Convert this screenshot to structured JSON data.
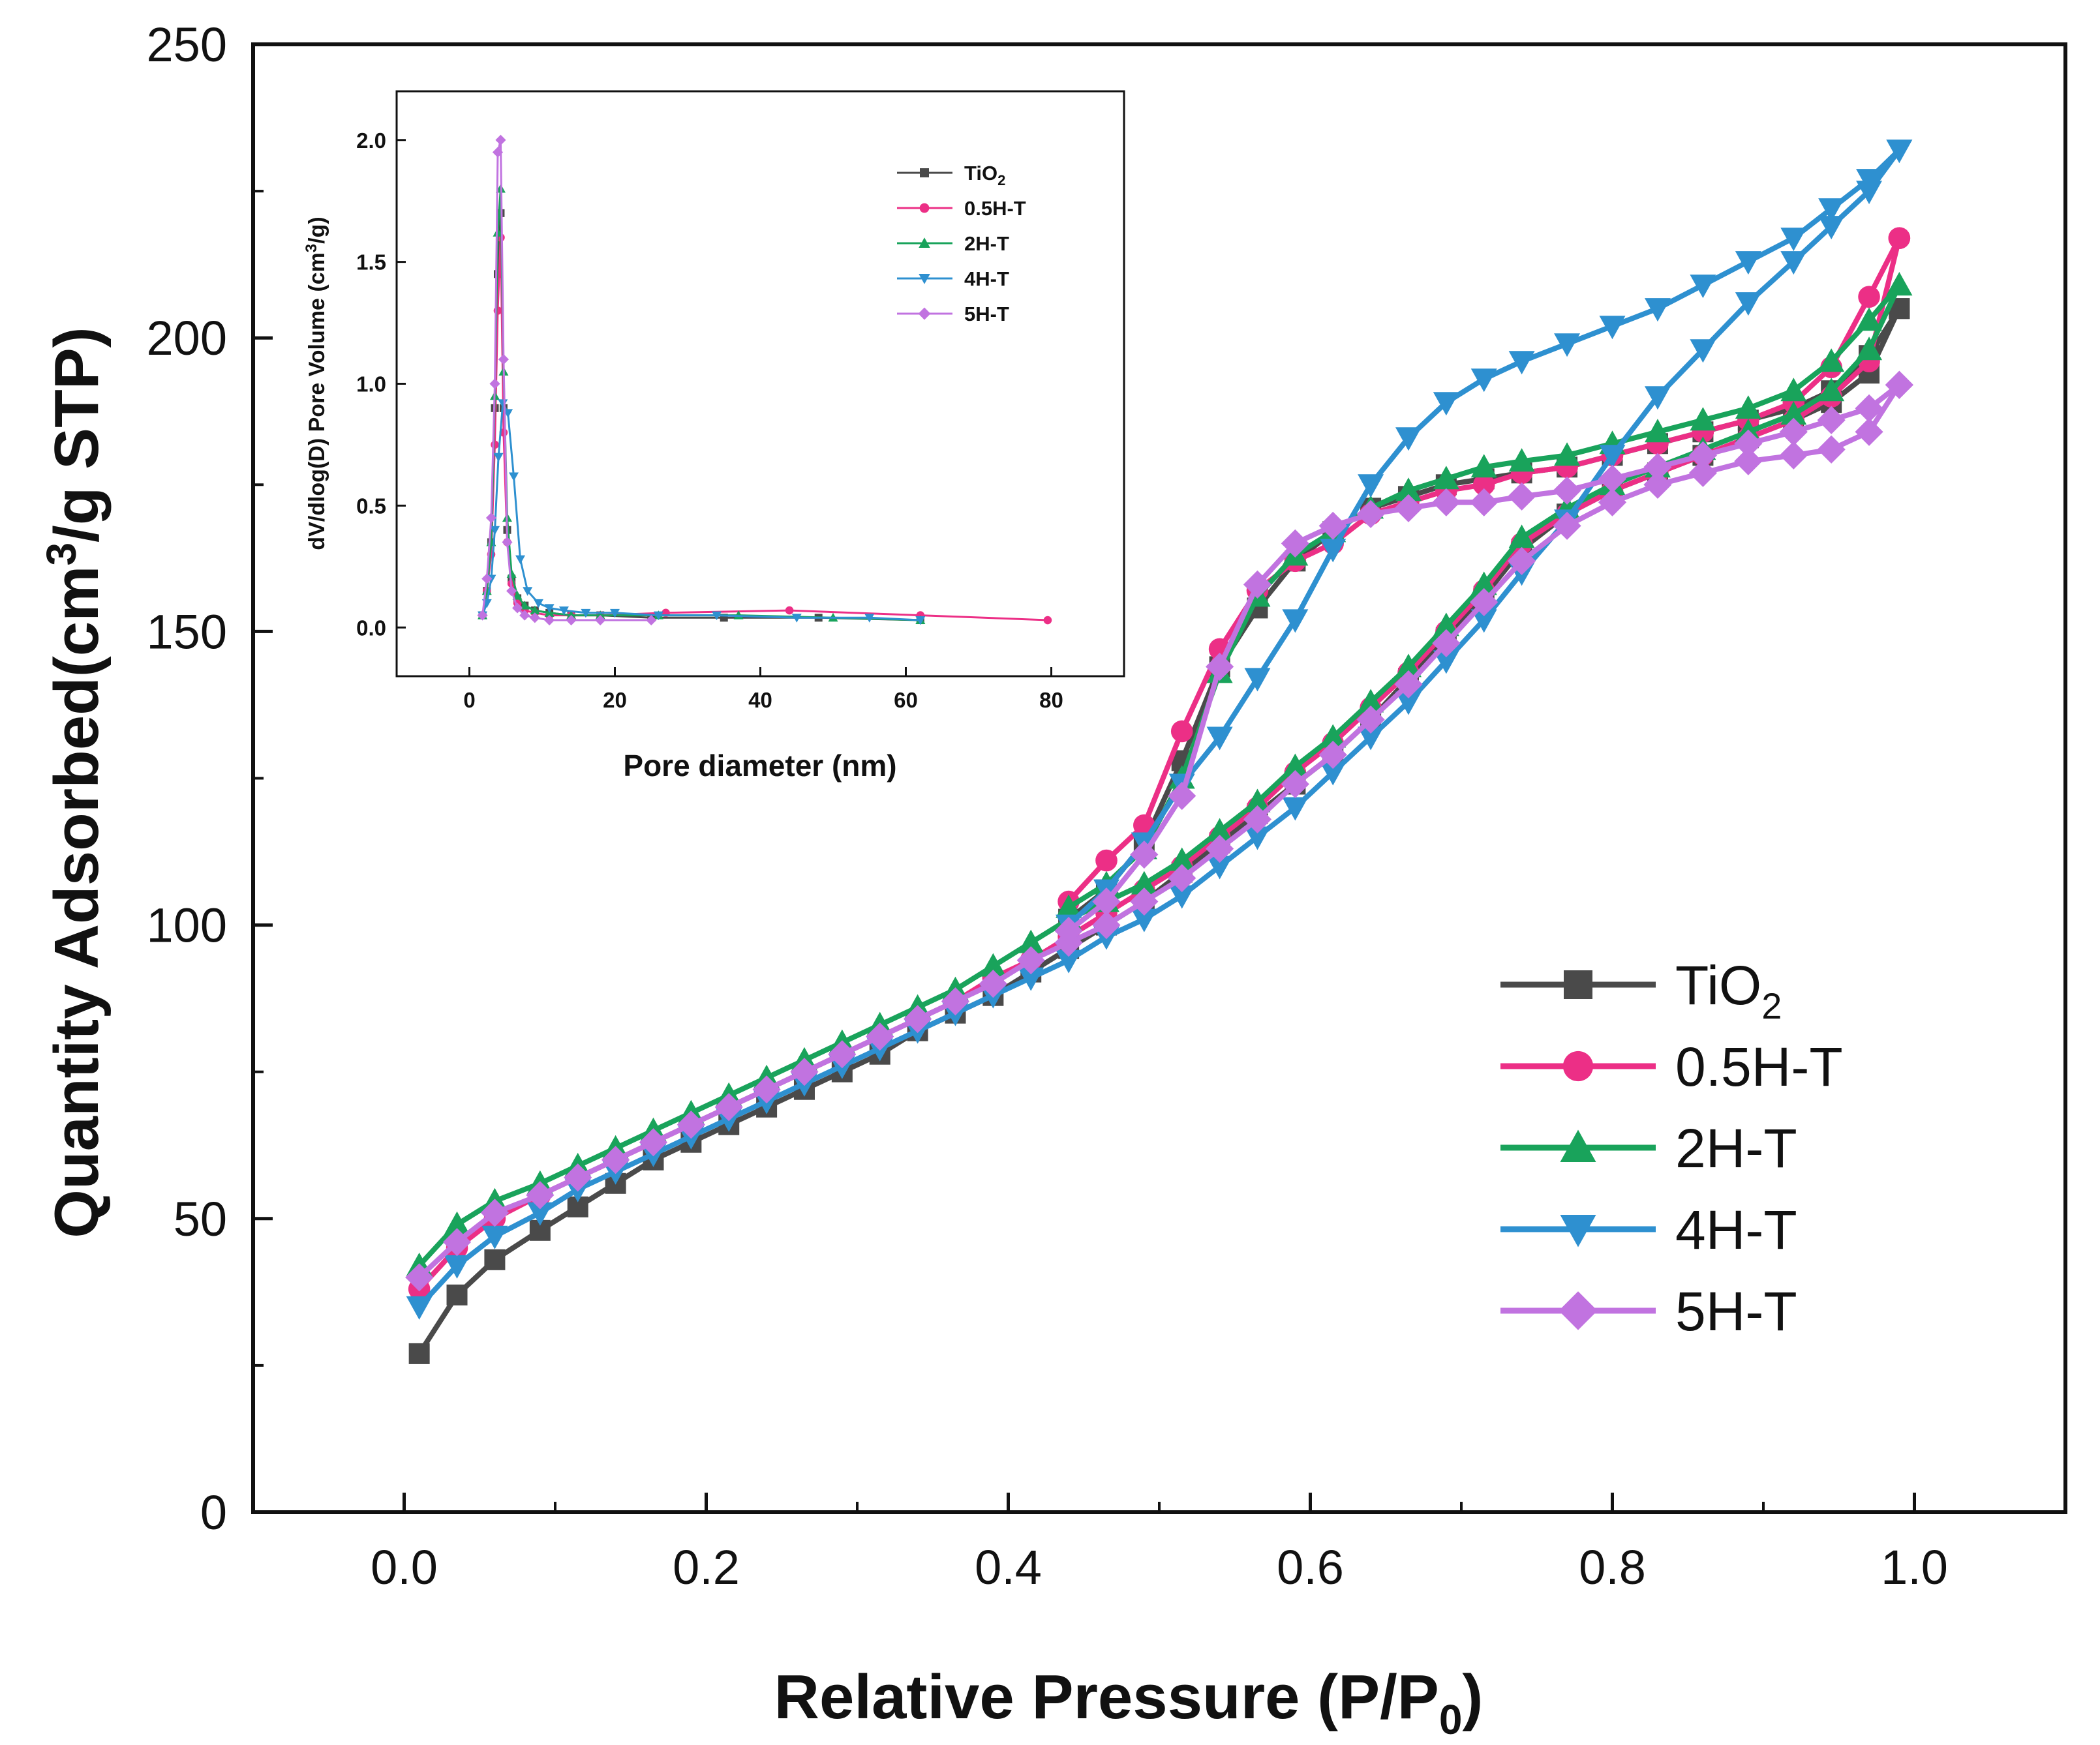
{
  "chart_data": [
    {
      "type": "line",
      "title": "",
      "xlabel": "Relative Pressure (P/P",
      "xlabel_sub": "0",
      "xlabel_tail": ")",
      "ylabel": "Quantity Adsorbed(cm",
      "ylabel_sup": "3",
      "ylabel_tail": "/g STP)",
      "xlim": [
        -0.1,
        1.1
      ],
      "ylim": [
        0,
        250
      ],
      "xticks": [
        0.0,
        0.2,
        0.4,
        0.6,
        0.8,
        1.0
      ],
      "xtick_labels": [
        "0.0",
        "0.2",
        "0.4",
        "0.6",
        "0.8",
        "1.0"
      ],
      "yticks": [
        0,
        50,
        100,
        150,
        200,
        250
      ],
      "ytick_labels": [
        "0",
        "50",
        "100",
        "150",
        "200",
        "250"
      ],
      "legend_position": "bottom-right",
      "series": [
        {
          "name": "TiO",
          "name_sub": "2",
          "color": "#4a4a4a",
          "marker": "square",
          "adsorption": {
            "x": [
              0.01,
              0.035,
              0.06,
              0.09,
              0.115,
              0.14,
              0.165,
              0.19,
              0.215,
              0.24,
              0.265,
              0.29,
              0.315,
              0.34,
              0.365,
              0.39,
              0.415,
              0.44,
              0.465,
              0.49,
              0.515,
              0.54,
              0.565,
              0.59,
              0.615,
              0.64,
              0.665,
              0.69,
              0.715,
              0.74,
              0.77,
              0.8,
              0.83,
              0.86,
              0.89,
              0.92,
              0.945,
              0.97,
              0.99
            ],
            "y": [
              27,
              37,
              43,
              48,
              52,
              56,
              60,
              63,
              66,
              69,
              72,
              75,
              78,
              82,
              85,
              88,
              92,
              96,
              100,
              104,
              109,
              114,
              119,
              124,
              129,
              135,
              142,
              149,
              156,
              164,
              170,
              174,
              177,
              180,
              183,
              186,
              189,
              194,
              205
            ]
          },
          "desorption": {
            "x": [
              0.99,
              0.97,
              0.945,
              0.92,
              0.89,
              0.86,
              0.83,
              0.8,
              0.77,
              0.74,
              0.715,
              0.69,
              0.665,
              0.64,
              0.615,
              0.59,
              0.565,
              0.54,
              0.515,
              0.49,
              0.465,
              0.44
            ],
            "y": [
              205,
              197,
              191,
              188,
              186,
              184,
              182,
              180,
              178,
              177,
              176,
              175,
              173,
              171,
              167,
              162,
              154,
              144,
              128,
              114,
              106,
              101
            ]
          }
        },
        {
          "name": "0.5H-T",
          "name_sub": "",
          "color": "#ec2f86",
          "marker": "circle",
          "adsorption": {
            "x": [
              0.01,
              0.035,
              0.06,
              0.09,
              0.115,
              0.14,
              0.165,
              0.19,
              0.215,
              0.24,
              0.265,
              0.29,
              0.315,
              0.34,
              0.365,
              0.39,
              0.415,
              0.44,
              0.465,
              0.49,
              0.515,
              0.54,
              0.565,
              0.59,
              0.615,
              0.64,
              0.665,
              0.69,
              0.715,
              0.74,
              0.77,
              0.8,
              0.83,
              0.86,
              0.89,
              0.92,
              0.945,
              0.97,
              0.99
            ],
            "y": [
              38,
              45,
              50,
              54,
              57,
              60,
              63,
              66,
              69,
              72,
              75,
              78,
              81,
              84,
              87,
              91,
              94,
              98,
              102,
              106,
              110,
              115,
              120,
              126,
              131,
              137,
              143,
              150,
              157,
              165,
              170,
              174,
              177,
              180,
              183,
              186,
              190,
              196,
              217
            ]
          },
          "desorption": {
            "x": [
              0.99,
              0.97,
              0.945,
              0.92,
              0.89,
              0.86,
              0.83,
              0.8,
              0.77,
              0.74,
              0.715,
              0.69,
              0.665,
              0.64,
              0.615,
              0.59,
              0.565,
              0.54,
              0.515,
              0.49,
              0.465,
              0.44
            ],
            "y": [
              217,
              207,
              195,
              189,
              186,
              184,
              182,
              180,
              178,
              177,
              175,
              174,
              172,
              170,
              165,
              162,
              157,
              147,
              133,
              117,
              111,
              104
            ]
          }
        },
        {
          "name": "2H-T",
          "name_sub": "",
          "color": "#19a35b",
          "marker": "triangle-up",
          "adsorption": {
            "x": [
              0.01,
              0.035,
              0.06,
              0.09,
              0.115,
              0.14,
              0.165,
              0.19,
              0.215,
              0.24,
              0.265,
              0.29,
              0.315,
              0.34,
              0.365,
              0.39,
              0.415,
              0.44,
              0.465,
              0.49,
              0.515,
              0.54,
              0.565,
              0.59,
              0.615,
              0.64,
              0.665,
              0.69,
              0.715,
              0.74,
              0.77,
              0.8,
              0.83,
              0.86,
              0.89,
              0.92,
              0.945,
              0.97,
              0.99
            ],
            "y": [
              42,
              49,
              53,
              56,
              59,
              62,
              65,
              68,
              71,
              74,
              77,
              80,
              83,
              86,
              89,
              93,
              97,
              101,
              104,
              107,
              111,
              116,
              121,
              127,
              132,
              138,
              144,
              151,
              158,
              166,
              171,
              175,
              178,
              181,
              184,
              187,
              191,
              198,
              209
            ]
          },
          "desorption": {
            "x": [
              0.99,
              0.97,
              0.945,
              0.92,
              0.89,
              0.86,
              0.83,
              0.8,
              0.77,
              0.74,
              0.715,
              0.69,
              0.665,
              0.64,
              0.615,
              0.59,
              0.565,
              0.54,
              0.515,
              0.49,
              0.465,
              0.44
            ],
            "y": [
              209,
              203,
              196,
              191,
              188,
              186,
              184,
              182,
              180,
              179,
              178,
              176,
              174,
              171,
              167,
              163,
              156,
              143,
              125,
              113,
              107,
              103
            ]
          }
        },
        {
          "name": "4H-T",
          "name_sub": "",
          "color": "#2e90d0",
          "marker": "triangle-down",
          "adsorption": {
            "x": [
              0.01,
              0.035,
              0.06,
              0.09,
              0.115,
              0.14,
              0.165,
              0.19,
              0.215,
              0.24,
              0.265,
              0.29,
              0.315,
              0.34,
              0.365,
              0.39,
              0.415,
              0.44,
              0.465,
              0.49,
              0.515,
              0.54,
              0.565,
              0.59,
              0.615,
              0.64,
              0.665,
              0.69,
              0.715,
              0.74,
              0.77,
              0.8,
              0.83,
              0.86,
              0.89,
              0.92,
              0.945,
              0.97,
              0.99
            ],
            "y": [
              35,
              42,
              47,
              51,
              55,
              58,
              61,
              64,
              67,
              70,
              73,
              76,
              79,
              82,
              85,
              88,
              91,
              94,
              98,
              101,
              105,
              110,
              115,
              120,
              126,
              132,
              138,
              145,
              152,
              160,
              169,
              180,
              190,
              198,
              206,
              213,
              219,
              225,
              232
            ]
          },
          "desorption": {
            "x": [
              0.99,
              0.97,
              0.945,
              0.92,
              0.89,
              0.86,
              0.83,
              0.8,
              0.77,
              0.74,
              0.715,
              0.69,
              0.665,
              0.64,
              0.615,
              0.59,
              0.565,
              0.54,
              0.515,
              0.49,
              0.465,
              0.44
            ],
            "y": [
              232,
              227,
              222,
              217,
              213,
              209,
              205,
              202,
              199,
              196,
              193,
              189,
              183,
              175,
              164,
              152,
              142,
              132,
              124,
              114,
              106,
              100
            ]
          }
        },
        {
          "name": "5H-T",
          "name_sub": "",
          "color": "#c173e0",
          "marker": "diamond",
          "adsorption": {
            "x": [
              0.01,
              0.035,
              0.06,
              0.09,
              0.115,
              0.14,
              0.165,
              0.19,
              0.215,
              0.24,
              0.265,
              0.29,
              0.315,
              0.34,
              0.365,
              0.39,
              0.415,
              0.44,
              0.465,
              0.49,
              0.515,
              0.54,
              0.565,
              0.59,
              0.615,
              0.64,
              0.665,
              0.69,
              0.715,
              0.74,
              0.77,
              0.8,
              0.83,
              0.86,
              0.89,
              0.92,
              0.945,
              0.97,
              0.99
            ],
            "y": [
              40,
              46,
              51,
              54,
              57,
              60,
              63,
              66,
              69,
              72,
              75,
              78,
              81,
              84,
              87,
              90,
              94,
              97,
              100,
              104,
              108,
              113,
              118,
              124,
              129,
              135,
              141,
              148,
              155,
              162,
              168,
              172,
              175,
              177,
              179,
              180,
              181,
              184,
              192
            ]
          },
          "desorption": {
            "x": [
              0.99,
              0.97,
              0.945,
              0.92,
              0.89,
              0.86,
              0.83,
              0.8,
              0.77,
              0.74,
              0.715,
              0.69,
              0.665,
              0.64,
              0.615,
              0.59,
              0.565,
              0.54,
              0.515,
              0.49,
              0.465,
              0.44
            ],
            "y": [
              192,
              188,
              186,
              184,
              182,
              180,
              178,
              176,
              174,
              173,
              172,
              172,
              171,
              170,
              168,
              165,
              158,
              144,
              122,
              112,
              104,
              99
            ]
          }
        }
      ]
    },
    {
      "type": "line",
      "title": "",
      "xlabel": "Pore diameter (nm)",
      "ylabel": "dV/dlog(D) Pore Volume (cm",
      "ylabel_sup": "3",
      "ylabel_tail": "/g)",
      "xlim": [
        -10,
        90
      ],
      "ylim": [
        -0.2,
        2.2
      ],
      "xticks": [
        0,
        20,
        40,
        60,
        80
      ],
      "xtick_labels": [
        "0",
        "20",
        "40",
        "60",
        "80"
      ],
      "yticks": [
        0.0,
        0.5,
        1.0,
        1.5,
        2.0
      ],
      "ytick_labels": [
        "0.0",
        "0.5",
        "1.0",
        "1.5",
        "2.0"
      ],
      "legend_position": "top-right",
      "series": [
        {
          "name": "TiO",
          "name_sub": "2",
          "color": "#4a4a4a",
          "marker": "square",
          "x": [
            1.8,
            2.4,
            3.0,
            3.5,
            3.9,
            4.3,
            4.7,
            5.2,
            5.8,
            6.6,
            7.6,
            9,
            11,
            14,
            18,
            25,
            35,
            48,
            62
          ],
          "y": [
            0.05,
            0.15,
            0.35,
            0.9,
            1.45,
            1.7,
            0.9,
            0.4,
            0.2,
            0.12,
            0.09,
            0.07,
            0.06,
            0.05,
            0.05,
            0.04,
            0.04,
            0.04,
            0.03
          ]
        },
        {
          "name": "0.5H-T",
          "name_sub": "",
          "color": "#ec2f86",
          "marker": "circle",
          "x": [
            1.8,
            2.4,
            3.0,
            3.5,
            3.9,
            4.3,
            4.7,
            5.2,
            5.8,
            6.6,
            7.6,
            9,
            11,
            14,
            18,
            27,
            44,
            62,
            79.5
          ],
          "y": [
            0.05,
            0.15,
            0.3,
            0.75,
            1.3,
            1.6,
            0.8,
            0.35,
            0.18,
            0.1,
            0.07,
            0.06,
            0.05,
            0.05,
            0.05,
            0.06,
            0.07,
            0.05,
            0.03
          ]
        },
        {
          "name": "2H-T",
          "name_sub": "",
          "color": "#19a35b",
          "marker": "triangle-up",
          "x": [
            1.8,
            2.4,
            3.0,
            3.5,
            3.9,
            4.3,
            4.7,
            5.2,
            5.8,
            6.6,
            7.6,
            9,
            11,
            14,
            18,
            26,
            37,
            50,
            62
          ],
          "y": [
            0.05,
            0.15,
            0.35,
            0.95,
            1.62,
            1.8,
            1.05,
            0.45,
            0.22,
            0.13,
            0.09,
            0.07,
            0.06,
            0.05,
            0.05,
            0.05,
            0.05,
            0.04,
            0.03
          ]
        },
        {
          "name": "4H-T",
          "name_sub": "",
          "color": "#2e90d0",
          "marker": "triangle-down",
          "x": [
            1.8,
            2.4,
            3.0,
            3.5,
            4.0,
            4.6,
            5.3,
            6.1,
            7.0,
            8.0,
            9.5,
            11,
            13,
            16,
            20,
            26,
            34,
            45,
            55,
            62
          ],
          "y": [
            0.05,
            0.1,
            0.2,
            0.4,
            0.7,
            0.92,
            0.88,
            0.62,
            0.28,
            0.15,
            0.1,
            0.08,
            0.07,
            0.06,
            0.06,
            0.05,
            0.05,
            0.04,
            0.04,
            0.03
          ]
        },
        {
          "name": "5H-T",
          "name_sub": "",
          "color": "#c173e0",
          "marker": "diamond",
          "x": [
            1.8,
            2.4,
            3.0,
            3.5,
            3.9,
            4.3,
            4.7,
            5.2,
            5.8,
            6.6,
            7.6,
            9,
            11,
            14,
            18,
            25
          ],
          "y": [
            0.05,
            0.2,
            0.45,
            1.0,
            1.95,
            2.0,
            1.1,
            0.35,
            0.15,
            0.08,
            0.05,
            0.04,
            0.03,
            0.03,
            0.03,
            0.03
          ]
        }
      ]
    }
  ]
}
